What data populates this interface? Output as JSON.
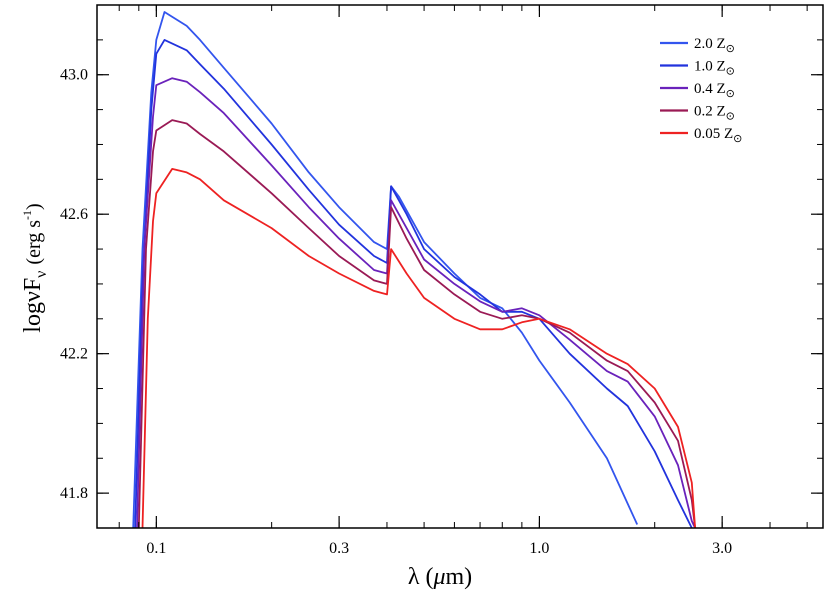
{
  "chart_data": {
    "type": "line",
    "xscale": "log",
    "xlim": [
      0.07,
      5.5
    ],
    "ylim": [
      41.7,
      43.2
    ],
    "xticks": [
      {
        "value": 0.1,
        "label": "0.1"
      },
      {
        "value": 0.3,
        "label": "0.3"
      },
      {
        "value": 1.0,
        "label": "1.0"
      },
      {
        "value": 3.0,
        "label": "3.0"
      }
    ],
    "yticks": [
      {
        "value": 41.8,
        "label": "41.8"
      },
      {
        "value": 42.2,
        "label": "42.2"
      },
      {
        "value": 42.6,
        "label": "42.6"
      },
      {
        "value": 43.0,
        "label": "43.0"
      }
    ],
    "xlabel": {
      "symbol": "λ",
      "unit_open": "(",
      "unit_mu": "μ",
      "unit_rest": "m)"
    },
    "ylabel": {
      "base": "logνF",
      "sub": "ν",
      "unit_open": "(erg s",
      "sup": "-1",
      "unit_close": ")"
    },
    "legend_position": "top-right",
    "series": [
      {
        "name": "2.0",
        "label_suffix": "Z",
        "label_sub": "⊙",
        "color": "#3355ee",
        "points": [
          [
            0.087,
            41.7
          ],
          [
            0.092,
            42.5
          ],
          [
            0.097,
            42.95
          ],
          [
            0.1,
            43.1
          ],
          [
            0.105,
            43.18
          ],
          [
            0.12,
            43.14
          ],
          [
            0.13,
            43.1
          ],
          [
            0.15,
            43.02
          ],
          [
            0.2,
            42.86
          ],
          [
            0.25,
            42.72
          ],
          [
            0.3,
            42.62
          ],
          [
            0.37,
            42.52
          ],
          [
            0.4,
            42.5
          ],
          [
            0.41,
            42.68
          ],
          [
            0.43,
            42.65
          ],
          [
            0.5,
            42.52
          ],
          [
            0.6,
            42.43
          ],
          [
            0.7,
            42.36
          ],
          [
            0.8,
            42.33
          ],
          [
            0.9,
            42.26
          ],
          [
            1.0,
            42.18
          ],
          [
            1.2,
            42.06
          ],
          [
            1.5,
            41.9
          ],
          [
            1.8,
            41.71
          ]
        ]
      },
      {
        "name": "1.0",
        "label_suffix": "Z",
        "label_sub": "⊙",
        "color": "#2233dd",
        "points": [
          [
            0.088,
            41.7
          ],
          [
            0.092,
            42.4
          ],
          [
            0.097,
            42.9
          ],
          [
            0.1,
            43.06
          ],
          [
            0.105,
            43.1
          ],
          [
            0.12,
            43.07
          ],
          [
            0.13,
            43.03
          ],
          [
            0.15,
            42.96
          ],
          [
            0.2,
            42.8
          ],
          [
            0.25,
            42.67
          ],
          [
            0.3,
            42.57
          ],
          [
            0.37,
            42.48
          ],
          [
            0.4,
            42.46
          ],
          [
            0.41,
            42.68
          ],
          [
            0.45,
            42.6
          ],
          [
            0.5,
            42.5
          ],
          [
            0.6,
            42.42
          ],
          [
            0.7,
            42.37
          ],
          [
            0.8,
            42.32
          ],
          [
            0.9,
            42.32
          ],
          [
            1.0,
            42.3
          ],
          [
            1.2,
            42.2
          ],
          [
            1.5,
            42.1
          ],
          [
            1.7,
            42.05
          ],
          [
            2.0,
            41.92
          ],
          [
            2.3,
            41.78
          ],
          [
            2.5,
            41.7
          ]
        ]
      },
      {
        "name": "0.4",
        "label_suffix": "Z",
        "label_sub": "⊙",
        "color": "#6a22bb",
        "points": [
          [
            0.089,
            41.7
          ],
          [
            0.093,
            42.5
          ],
          [
            0.098,
            42.88
          ],
          [
            0.1,
            42.97
          ],
          [
            0.11,
            42.99
          ],
          [
            0.12,
            42.98
          ],
          [
            0.13,
            42.95
          ],
          [
            0.15,
            42.89
          ],
          [
            0.2,
            42.74
          ],
          [
            0.25,
            42.62
          ],
          [
            0.3,
            42.53
          ],
          [
            0.37,
            42.44
          ],
          [
            0.4,
            42.43
          ],
          [
            0.41,
            42.64
          ],
          [
            0.45,
            42.56
          ],
          [
            0.5,
            42.47
          ],
          [
            0.6,
            42.4
          ],
          [
            0.7,
            42.35
          ],
          [
            0.8,
            42.32
          ],
          [
            0.9,
            42.33
          ],
          [
            1.0,
            42.31
          ],
          [
            1.2,
            42.24
          ],
          [
            1.5,
            42.15
          ],
          [
            1.7,
            42.12
          ],
          [
            2.0,
            42.02
          ],
          [
            2.3,
            41.88
          ],
          [
            2.5,
            41.72
          ],
          [
            2.55,
            41.7
          ]
        ]
      },
      {
        "name": "0.2",
        "label_suffix": "Z",
        "label_sub": "⊙",
        "color": "#9a1a55",
        "points": [
          [
            0.09,
            41.7
          ],
          [
            0.094,
            42.5
          ],
          [
            0.098,
            42.78
          ],
          [
            0.1,
            42.84
          ],
          [
            0.11,
            42.87
          ],
          [
            0.12,
            42.86
          ],
          [
            0.13,
            42.83
          ],
          [
            0.15,
            42.78
          ],
          [
            0.2,
            42.66
          ],
          [
            0.25,
            42.56
          ],
          [
            0.3,
            42.48
          ],
          [
            0.37,
            42.41
          ],
          [
            0.4,
            42.4
          ],
          [
            0.41,
            42.62
          ],
          [
            0.45,
            42.53
          ],
          [
            0.5,
            42.44
          ],
          [
            0.6,
            42.37
          ],
          [
            0.7,
            42.32
          ],
          [
            0.8,
            42.3
          ],
          [
            0.9,
            42.31
          ],
          [
            1.0,
            42.3
          ],
          [
            1.2,
            42.26
          ],
          [
            1.5,
            42.18
          ],
          [
            1.7,
            42.15
          ],
          [
            2.0,
            42.06
          ],
          [
            2.3,
            41.95
          ],
          [
            2.5,
            41.78
          ],
          [
            2.55,
            41.7
          ]
        ]
      },
      {
        "name": "0.05",
        "label_suffix": "Z",
        "label_sub": "⊙",
        "color": "#ee2222",
        "points": [
          [
            0.092,
            41.7
          ],
          [
            0.095,
            42.3
          ],
          [
            0.098,
            42.58
          ],
          [
            0.1,
            42.66
          ],
          [
            0.11,
            42.73
          ],
          [
            0.12,
            42.72
          ],
          [
            0.13,
            42.7
          ],
          [
            0.15,
            42.64
          ],
          [
            0.2,
            42.56
          ],
          [
            0.25,
            42.48
          ],
          [
            0.3,
            42.43
          ],
          [
            0.37,
            42.38
          ],
          [
            0.4,
            42.37
          ],
          [
            0.41,
            42.5
          ],
          [
            0.45,
            42.43
          ],
          [
            0.5,
            42.36
          ],
          [
            0.6,
            42.3
          ],
          [
            0.7,
            42.27
          ],
          [
            0.8,
            42.27
          ],
          [
            0.9,
            42.29
          ],
          [
            1.0,
            42.3
          ],
          [
            1.2,
            42.27
          ],
          [
            1.5,
            42.2
          ],
          [
            1.7,
            42.17
          ],
          [
            2.0,
            42.1
          ],
          [
            2.3,
            41.99
          ],
          [
            2.5,
            41.83
          ],
          [
            2.55,
            41.7
          ]
        ]
      }
    ]
  }
}
